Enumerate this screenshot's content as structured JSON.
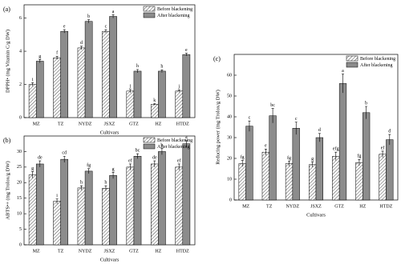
{
  "chart_data": [
    {
      "type": "bar",
      "panel": "(a)",
      "y_label": "DPPH• (mg Vitamin C/g DW)",
      "x_label": "Cultivars",
      "categories": [
        "MZ",
        "TZ",
        "NYDZ",
        "JSXZ",
        "GTZ",
        "HZ",
        "HTDZ"
      ],
      "series": [
        {
          "name": "Before blackening",
          "color": "#ffffff",
          "pattern": "hatch",
          "values": [
            2.0,
            3.6,
            4.2,
            5.2,
            1.6,
            0.8,
            1.6
          ],
          "errors": [
            0.1,
            0.1,
            0.1,
            0.1,
            0.1,
            0.05,
            0.08
          ],
          "letters": [
            "i",
            "f",
            "d",
            "c",
            "j",
            "k",
            "j"
          ]
        },
        {
          "name": "After blackening",
          "color": "#8c8c8c",
          "values": [
            3.4,
            5.2,
            5.8,
            6.1,
            2.8,
            2.8,
            3.8
          ],
          "errors": [
            0.1,
            0.1,
            0.1,
            0.1,
            0.1,
            0.08,
            0.08
          ],
          "letters": [
            "g",
            "e",
            "b",
            "a",
            "h",
            "h",
            "e"
          ]
        }
      ],
      "ylim": [
        0,
        6.8
      ],
      "yticks": [
        0,
        2,
        4,
        6
      ],
      "legend": "upper right"
    },
    {
      "type": "bar",
      "panel": "(b)",
      "y_label": "ABTS•+ (mg Trolox/g DW)",
      "x_label": "Cultivars",
      "categories": [
        "MZ",
        "TZ",
        "NYDZ",
        "JSXZ",
        "GTZ",
        "HZ",
        "HTDZ"
      ],
      "series": [
        {
          "name": "Before blackening",
          "color": "#ffffff",
          "pattern": "hatch",
          "values": [
            22.5,
            14,
            18.3,
            18.2,
            25,
            26,
            25
          ],
          "errors": [
            1,
            0.8,
            0.7,
            0.8,
            1,
            1,
            1
          ],
          "letters": [
            "g",
            "i",
            "h",
            "h",
            "ef",
            "de",
            "ef"
          ]
        },
        {
          "name": "After blackening",
          "color": "#8c8c8c",
          "values": [
            26,
            27.5,
            23.7,
            22.3,
            28.5,
            30,
            32.5
          ],
          "errors": [
            1,
            1,
            0.8,
            1,
            0.8,
            1,
            1
          ],
          "letters": [
            "de",
            "cd",
            "fg",
            "g",
            "bc",
            "b",
            "a"
          ]
        }
      ],
      "ylim": [
        0,
        35
      ],
      "yticks": [
        0,
        5,
        10,
        15,
        20,
        25,
        30
      ],
      "legend": "upper right"
    },
    {
      "type": "bar",
      "panel": "(c)",
      "y_label": "Reducing power (mg Trolox/g DW)",
      "x_label": "Cultivars",
      "categories": [
        "MZ",
        "TZ",
        "NYDZ",
        "JSXZ",
        "GTZ",
        "HZ",
        "HTDZ"
      ],
      "series": [
        {
          "name": "Before blackening",
          "color": "#ffffff",
          "pattern": "hatch",
          "values": [
            17.5,
            23,
            17.5,
            17,
            21,
            18,
            22
          ],
          "errors": [
            1.5,
            1.5,
            1.2,
            1.2,
            2,
            1.5,
            1.5
          ],
          "letters": [
            "fg",
            "e",
            "fg",
            "g",
            "efg",
            "fg",
            "ef"
          ]
        },
        {
          "name": "After blackening",
          "color": "#8c8c8c",
          "values": [
            35.5,
            40.5,
            34.5,
            30,
            56,
            42,
            29
          ],
          "errors": [
            2.5,
            3.5,
            3,
            2,
            4.5,
            3,
            2.5
          ],
          "letters": [
            "c",
            "bc",
            "c",
            "d",
            "a",
            "b",
            "d"
          ]
        }
      ],
      "ylim": [
        0,
        70
      ],
      "yticks": [
        0,
        10,
        20,
        30,
        40,
        50,
        60
      ],
      "legend": "upper right"
    }
  ]
}
